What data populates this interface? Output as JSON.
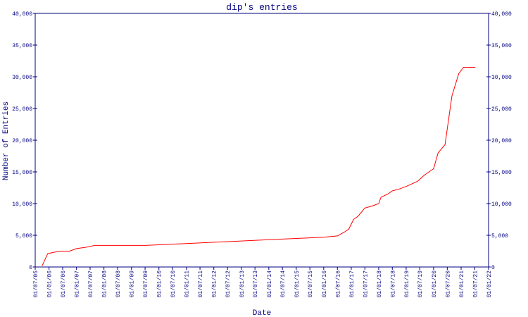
{
  "chart_data": {
    "type": "line",
    "title": "dip's entries",
    "xlabel": "Date",
    "ylabel": "Number of Entries",
    "axis_color": "#000080",
    "xlim": [
      "2005-07-01",
      "2022-01-01"
    ],
    "xticks": [
      {
        "value": "2005-07-01",
        "label": "01/07/05"
      },
      {
        "value": "2006-01-01",
        "label": "01/01/06"
      },
      {
        "value": "2006-07-01",
        "label": "01/07/06"
      },
      {
        "value": "2007-01-01",
        "label": "01/01/07"
      },
      {
        "value": "2007-07-01",
        "label": "01/07/07"
      },
      {
        "value": "2008-01-01",
        "label": "01/01/08"
      },
      {
        "value": "2008-07-01",
        "label": "01/07/08"
      },
      {
        "value": "2009-01-01",
        "label": "01/01/09"
      },
      {
        "value": "2009-07-01",
        "label": "01/07/09"
      },
      {
        "value": "2010-01-01",
        "label": "01/01/10"
      },
      {
        "value": "2010-07-01",
        "label": "01/07/10"
      },
      {
        "value": "2011-01-01",
        "label": "01/01/11"
      },
      {
        "value": "2011-07-01",
        "label": "01/07/11"
      },
      {
        "value": "2012-01-01",
        "label": "01/01/12"
      },
      {
        "value": "2012-07-01",
        "label": "01/07/12"
      },
      {
        "value": "2013-01-01",
        "label": "01/01/13"
      },
      {
        "value": "2013-07-01",
        "label": "01/07/13"
      },
      {
        "value": "2014-01-01",
        "label": "01/01/14"
      },
      {
        "value": "2014-07-01",
        "label": "01/07/14"
      },
      {
        "value": "2015-01-01",
        "label": "01/01/15"
      },
      {
        "value": "2015-07-01",
        "label": "01/07/15"
      },
      {
        "value": "2016-01-01",
        "label": "01/01/16"
      },
      {
        "value": "2016-07-01",
        "label": "01/07/16"
      },
      {
        "value": "2017-01-01",
        "label": "01/01/17"
      },
      {
        "value": "2017-07-01",
        "label": "01/07/17"
      },
      {
        "value": "2018-01-01",
        "label": "01/01/18"
      },
      {
        "value": "2018-07-01",
        "label": "01/07/18"
      },
      {
        "value": "2019-01-01",
        "label": "01/01/19"
      },
      {
        "value": "2019-07-01",
        "label": "01/07/19"
      },
      {
        "value": "2020-01-01",
        "label": "01/01/20"
      },
      {
        "value": "2020-07-01",
        "label": "01/07/20"
      },
      {
        "value": "2021-01-01",
        "label": "01/01/21"
      },
      {
        "value": "2021-07-01",
        "label": "01/07/21"
      },
      {
        "value": "2022-01-01",
        "label": "01/01/22"
      }
    ],
    "ylim": [
      0,
      40000
    ],
    "yticks": [
      0,
      {
        "value": 5000,
        "label": "5,000"
      },
      {
        "value": 10000,
        "label": "10,000"
      },
      {
        "value": 15000,
        "label": "15,000"
      },
      {
        "value": 20000,
        "label": "20,000"
      },
      {
        "value": 25000,
        "label": "25,000"
      },
      {
        "value": 30000,
        "label": "30,000"
      },
      {
        "value": 35000,
        "label": "35,000"
      },
      {
        "value": 40000,
        "label": "40,000"
      }
    ],
    "y2lim": [
      0,
      40000
    ],
    "y2ticks": [
      0,
      {
        "value": 5000,
        "label": "5,000"
      },
      {
        "value": 10000,
        "label": "10,000"
      },
      {
        "value": 15000,
        "label": "15,000"
      },
      {
        "value": 20000,
        "label": "20,000"
      },
      {
        "value": 25000,
        "label": "25,000"
      },
      {
        "value": 30000,
        "label": "30,000"
      },
      {
        "value": 35000,
        "label": "35,000"
      },
      {
        "value": 40000,
        "label": "40,000"
      }
    ],
    "x": [
      "2005-10-01",
      "2005-12-15",
      "2006-03-01",
      "2006-06-01",
      "2006-10-01",
      "2007-01-01",
      "2007-05-01",
      "2007-09-01",
      "2009-07-01",
      "2010-01-01",
      "2011-01-01",
      "2012-01-01",
      "2013-01-01",
      "2014-01-01",
      "2015-01-01",
      "2016-01-01",
      "2016-07-01",
      "2016-10-01",
      "2016-12-01",
      "2017-02-01",
      "2017-04-01",
      "2017-07-01",
      "2017-10-01",
      "2018-01-01",
      "2018-02-01",
      "2018-05-01",
      "2018-07-01",
      "2018-10-01",
      "2019-01-01",
      "2019-06-01",
      "2019-09-01",
      "2020-01-01",
      "2020-03-01",
      "2020-06-01",
      "2020-09-01",
      "2020-12-01",
      "2021-02-01",
      "2021-07-10"
    ],
    "series": [
      {
        "name": "entries",
        "color": "#ff0000",
        "values": [
          200,
          2100,
          2300,
          2500,
          2500,
          2900,
          3100,
          3400,
          3400,
          3500,
          3700,
          3900,
          4100,
          4300,
          4500,
          4700,
          4900,
          5500,
          6000,
          7500,
          8000,
          9300,
          9600,
          10000,
          11000,
          11500,
          12000,
          12300,
          12700,
          13500,
          14500,
          15500,
          18000,
          19300,
          27000,
          30500,
          31500,
          31500
        ]
      }
    ]
  }
}
